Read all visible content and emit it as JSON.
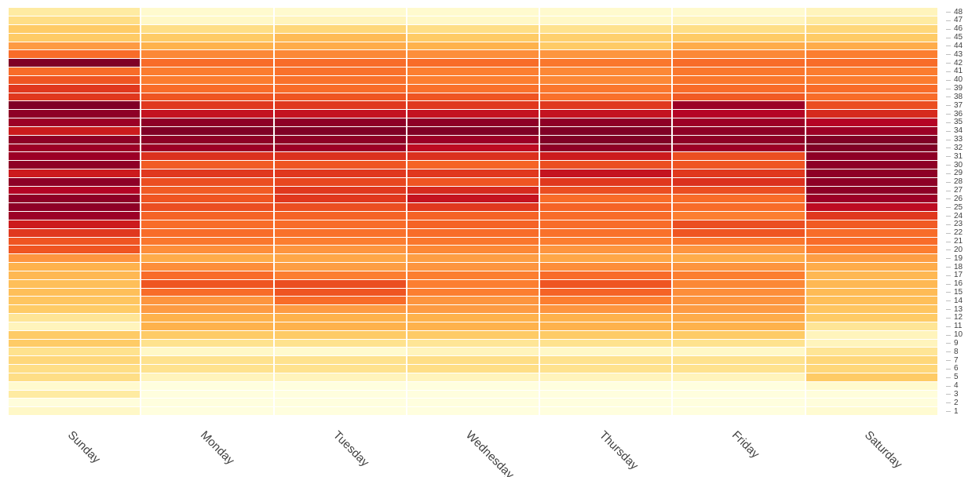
{
  "heatmap": {
    "type": "heatmap",
    "x_categories": [
      "Sunday",
      "Monday",
      "Tuesday",
      "Wednesday",
      "Thursday",
      "Friday",
      "Saturday"
    ],
    "y_values": [
      1,
      2,
      3,
      4,
      5,
      6,
      7,
      8,
      9,
      10,
      11,
      12,
      13,
      14,
      15,
      16,
      17,
      18,
      19,
      20,
      21,
      22,
      23,
      24,
      25,
      26,
      27,
      28,
      29,
      30,
      31,
      32,
      33,
      34,
      35,
      36,
      37,
      38,
      39,
      40,
      41,
      42,
      43,
      44,
      45,
      46,
      47,
      48
    ],
    "x_label_rotation_deg": 45,
    "x_label_fontsize": 15,
    "y_label_fontsize": 10,
    "background_color": "#ffffff",
    "cell_gap_color": "#ffffff",
    "axis_text_color": "#414141",
    "colorscale": [
      [
        0.0,
        "#ffffe1"
      ],
      [
        0.08,
        "#fff8c7"
      ],
      [
        0.15,
        "#feeba2"
      ],
      [
        0.22,
        "#fede86"
      ],
      [
        0.3,
        "#fecb66"
      ],
      [
        0.38,
        "#feb24c"
      ],
      [
        0.46,
        "#fd9b43"
      ],
      [
        0.54,
        "#fc8131"
      ],
      [
        0.62,
        "#f86c29"
      ],
      [
        0.7,
        "#ef5522"
      ],
      [
        0.78,
        "#e0381e"
      ],
      [
        0.86,
        "#cc1b1d"
      ],
      [
        0.93,
        "#b10026"
      ],
      [
        1.0,
        "#800026"
      ]
    ],
    "z": {
      "Sunday": [
        0.08,
        0.02,
        0.15,
        0.06,
        0.22,
        0.22,
        0.25,
        0.2,
        0.3,
        0.3,
        0.1,
        0.18,
        0.3,
        0.32,
        0.34,
        0.34,
        0.36,
        0.38,
        0.48,
        0.7,
        0.7,
        0.78,
        0.86,
        0.96,
        0.98,
        0.98,
        0.92,
        0.98,
        0.86,
        0.98,
        0.96,
        0.96,
        0.98,
        0.86,
        0.96,
        0.98,
        1.0,
        0.78,
        0.78,
        0.7,
        0.62,
        1.0,
        0.62,
        0.46,
        0.3,
        0.3,
        0.22,
        0.15
      ],
      "Monday": [
        0.01,
        0.01,
        0.01,
        0.01,
        0.1,
        0.2,
        0.2,
        0.08,
        0.2,
        0.3,
        0.38,
        0.38,
        0.46,
        0.48,
        0.62,
        0.7,
        0.62,
        0.5,
        0.4,
        0.5,
        0.58,
        0.62,
        0.62,
        0.65,
        0.72,
        0.7,
        0.68,
        0.72,
        0.78,
        0.68,
        0.8,
        0.96,
        0.98,
        1.0,
        0.98,
        0.88,
        0.78,
        0.7,
        0.62,
        0.56,
        0.56,
        0.62,
        0.52,
        0.38,
        0.3,
        0.22,
        0.08,
        0.06
      ],
      "Tuesday": [
        0.01,
        0.01,
        0.01,
        0.01,
        0.1,
        0.2,
        0.2,
        0.06,
        0.2,
        0.3,
        0.38,
        0.38,
        0.46,
        0.62,
        0.7,
        0.72,
        0.55,
        0.45,
        0.42,
        0.48,
        0.55,
        0.6,
        0.62,
        0.65,
        0.72,
        0.78,
        0.78,
        0.74,
        0.78,
        0.7,
        0.8,
        0.96,
        0.98,
        1.0,
        0.98,
        0.88,
        0.78,
        0.7,
        0.62,
        0.6,
        0.6,
        0.62,
        0.52,
        0.4,
        0.35,
        0.25,
        0.1,
        0.06
      ],
      "Wednesday": [
        0.01,
        0.01,
        0.01,
        0.01,
        0.1,
        0.22,
        0.22,
        0.1,
        0.18,
        0.3,
        0.38,
        0.38,
        0.46,
        0.48,
        0.55,
        0.55,
        0.55,
        0.48,
        0.45,
        0.52,
        0.58,
        0.62,
        0.65,
        0.65,
        0.78,
        0.88,
        0.82,
        0.7,
        0.78,
        0.65,
        0.8,
        0.9,
        0.96,
        1.0,
        0.98,
        0.88,
        0.78,
        0.7,
        0.6,
        0.55,
        0.55,
        0.62,
        0.5,
        0.38,
        0.3,
        0.22,
        0.08,
        0.06
      ],
      "Thursday": [
        0.01,
        0.01,
        0.01,
        0.01,
        0.1,
        0.2,
        0.2,
        0.08,
        0.2,
        0.3,
        0.38,
        0.38,
        0.48,
        0.55,
        0.65,
        0.7,
        0.62,
        0.5,
        0.42,
        0.48,
        0.55,
        0.6,
        0.62,
        0.62,
        0.65,
        0.62,
        0.72,
        0.78,
        0.88,
        0.72,
        0.86,
        0.98,
        1.0,
        1.0,
        0.98,
        0.88,
        0.78,
        0.6,
        0.58,
        0.52,
        0.52,
        0.58,
        0.48,
        0.3,
        0.28,
        0.2,
        0.08,
        0.06
      ],
      "Friday": [
        0.01,
        0.01,
        0.01,
        0.01,
        0.1,
        0.2,
        0.2,
        0.08,
        0.2,
        0.3,
        0.38,
        0.4,
        0.46,
        0.48,
        0.5,
        0.52,
        0.55,
        0.48,
        0.4,
        0.48,
        0.58,
        0.7,
        0.72,
        0.55,
        0.62,
        0.62,
        0.72,
        0.8,
        0.78,
        0.7,
        0.72,
        0.96,
        0.98,
        0.98,
        0.96,
        0.92,
        0.96,
        0.68,
        0.62,
        0.58,
        0.58,
        0.62,
        0.52,
        0.4,
        0.3,
        0.22,
        0.1,
        0.06
      ],
      "Saturday": [
        0.05,
        0.02,
        0.02,
        0.06,
        0.3,
        0.25,
        0.25,
        0.18,
        0.1,
        0.1,
        0.18,
        0.3,
        0.32,
        0.34,
        0.35,
        0.36,
        0.36,
        0.4,
        0.45,
        0.55,
        0.62,
        0.62,
        0.68,
        0.78,
        0.9,
        0.96,
        0.98,
        0.98,
        0.98,
        0.98,
        0.98,
        1.0,
        1.0,
        0.96,
        0.92,
        0.82,
        0.72,
        0.62,
        0.62,
        0.56,
        0.56,
        0.62,
        0.55,
        0.4,
        0.3,
        0.25,
        0.15,
        0.1
      ]
    }
  }
}
